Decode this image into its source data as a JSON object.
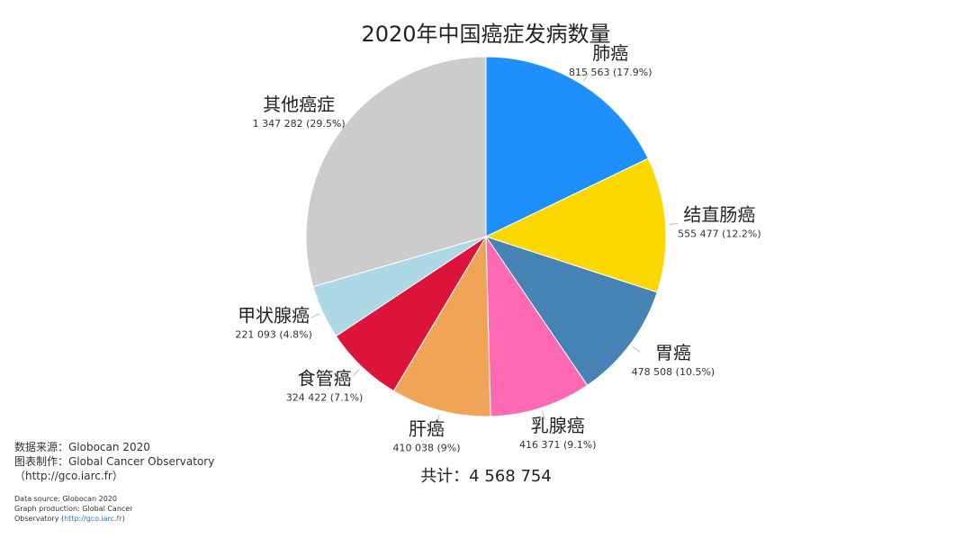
{
  "chart_data": {
    "type": "pie",
    "title": "2020年中国癌症发病数量",
    "slices": [
      {
        "label": "肺癌",
        "value": 815563,
        "display": "815 563 (17.9%)",
        "color": "#1f8ffc"
      },
      {
        "label": "结直肠癌",
        "value": 555477,
        "display": "555 477 (12.2%)",
        "color": "#fcd800"
      },
      {
        "label": "胃癌",
        "value": 478508,
        "display": "478 508 (10.5%)",
        "color": "#4682b4"
      },
      {
        "label": "乳腺癌",
        "value": 416371,
        "display": "416 371 (9.1%)",
        "color": "#ff69b4"
      },
      {
        "label": "肝癌",
        "value": 410038,
        "display": "410 038 (9%)",
        "color": "#f0a556"
      },
      {
        "label": "食管癌",
        "value": 324422,
        "display": "324 422 (7.1%)",
        "color": "#dc143c"
      },
      {
        "label": "甲状腺癌",
        "value": 221093,
        "display": "221 093 (4.8%)",
        "color": "#add8e6"
      },
      {
        "label": "其他癌症",
        "value": 1347282,
        "display": "1 347 282 (29.5%)",
        "color": "#cccccc"
      }
    ],
    "total_label": "共计：4 568 754"
  },
  "source": {
    "cn_line1": "数据来源：Globocan 2020",
    "cn_line2": "图表制作：Global Cancer Observatory",
    "cn_line3": "（http://gco.iarc.fr）",
    "en_line1": "Data source: Globocan 2020",
    "en_line2": "Graph production: Global Cancer",
    "en_line3_pre": "Observatory (",
    "en_line3_link": "http://gco.iarc.fr",
    "en_line3_post": ")"
  }
}
